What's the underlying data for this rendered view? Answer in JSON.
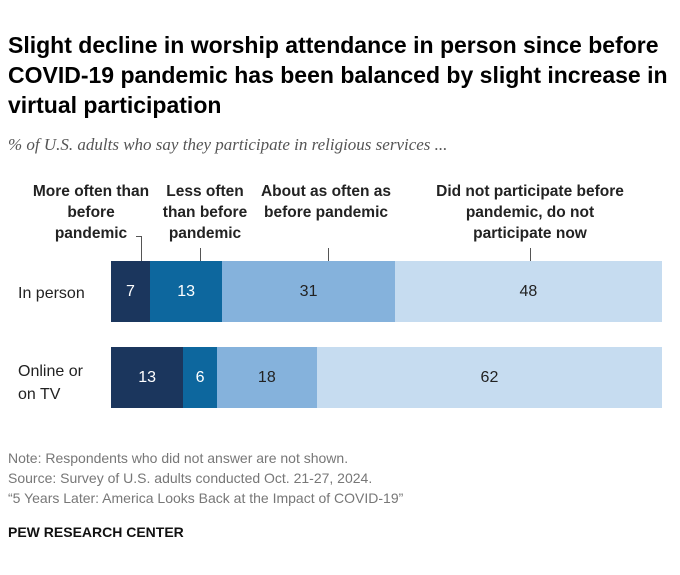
{
  "title": "Slight decline in worship attendance in person since before COVID-19 pandemic has been balanced by slight increase in virtual participation",
  "subtitle": "% of U.S. adults who say they participate in religious services ...",
  "chart_data": {
    "type": "bar",
    "orientation": "horizontal-stacked",
    "categories": [
      "In person",
      "Online or on TV"
    ],
    "series": [
      {
        "name": "More often than before pandemic",
        "values": [
          7,
          13
        ],
        "color": "#1b365d"
      },
      {
        "name": "Less often than before pandemic",
        "values": [
          13,
          6
        ],
        "color": "#0d679e"
      },
      {
        "name": "About as often as before pandemic",
        "values": [
          31,
          18
        ],
        "color": "#85b2dc"
      },
      {
        "name": "Did not participate before pandemic, do not participate now",
        "values": [
          48,
          62
        ],
        "color": "#c6dcf0"
      }
    ]
  },
  "notes": [
    "Note: Respondents who did not answer are not shown.",
    "Source: Survey of U.S. adults conducted Oct. 21-27, 2024.",
    "“5 Years Later: America Looks Back at the Impact of COVID-19”"
  ],
  "brand": "PEW RESEARCH CENTER"
}
